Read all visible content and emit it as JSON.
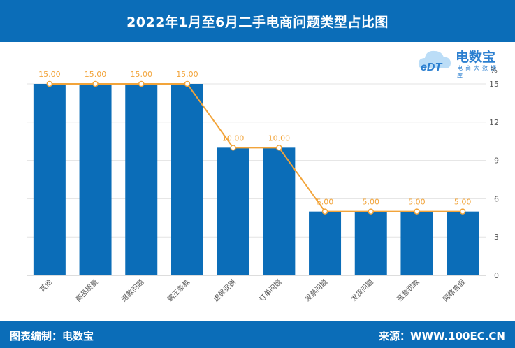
{
  "header": {
    "title": "2022年1月至6月二手电商问题类型占比图"
  },
  "footer": {
    "left": "图表编制：电数宝",
    "right": "来源：WWW.100EC.CN"
  },
  "logo": {
    "name": "电数宝",
    "tagline": "电商大数据库",
    "mark": "eDT",
    "icon": "cloud-logo-icon"
  },
  "colors": {
    "bar": "#0B6DB8",
    "line": "#F2A43A",
    "header": "#0B6DB8"
  },
  "chart_data": {
    "type": "bar",
    "title": "2022年1月至6月二手电商问题类型占比图",
    "categories": [
      "其他",
      "商品质量",
      "退款问题",
      "霸王条款",
      "虚假促销",
      "订单问题",
      "发票问题",
      "发货问题",
      "恶意罚款",
      "网络售假"
    ],
    "values": [
      15.0,
      15.0,
      15.0,
      15.0,
      10.0,
      10.0,
      5.0,
      5.0,
      5.0,
      5.0
    ],
    "data_labels": [
      "15.00",
      "15.00",
      "15.00",
      "15.00",
      "10.00",
      "10.00",
      "5.00",
      "5.00",
      "5.00",
      "5.00"
    ],
    "overlay_line": true,
    "y_axis": {
      "position": "right",
      "unit": "%",
      "ticks": [
        0,
        3,
        6,
        9,
        12,
        15
      ],
      "ylim": [
        0,
        15
      ]
    },
    "grid": true
  }
}
